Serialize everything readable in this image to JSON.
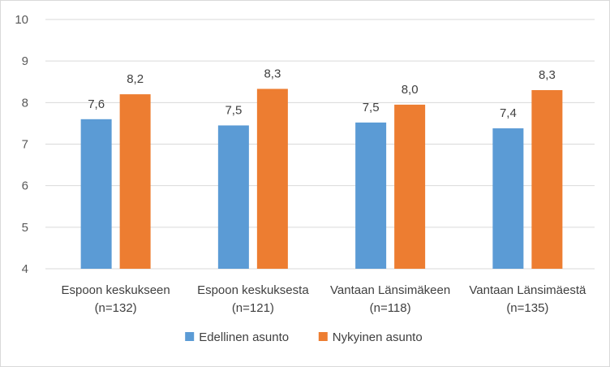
{
  "chart_data": {
    "type": "bar",
    "categories": [
      [
        "Espoon keskukseen",
        "(n=132)"
      ],
      [
        "Espoon keskuksesta",
        "(n=121)"
      ],
      [
        "Vantaan Länsimäkeen",
        "(n=118)"
      ],
      [
        "Vantaan Länsimäestä",
        "(n=135)"
      ]
    ],
    "series": [
      {
        "name": "Edellinen asunto",
        "color": "#5b9bd5",
        "values": [
          7.6,
          7.45,
          7.52,
          7.38
        ],
        "labels": [
          "7,6",
          "7,5",
          "7,5",
          "7,4"
        ]
      },
      {
        "name": "Nykyinen asunto",
        "color": "#ed7d31",
        "values": [
          8.2,
          8.33,
          7.95,
          8.3
        ],
        "labels": [
          "8,2",
          "8,3",
          "8,0",
          "8,3"
        ]
      }
    ],
    "ylim": [
      4,
      10
    ],
    "yticks": [
      4,
      5,
      6,
      7,
      8,
      9,
      10
    ],
    "grid": true,
    "legend": "bottom",
    "title": "",
    "xlabel": "",
    "ylabel": ""
  }
}
